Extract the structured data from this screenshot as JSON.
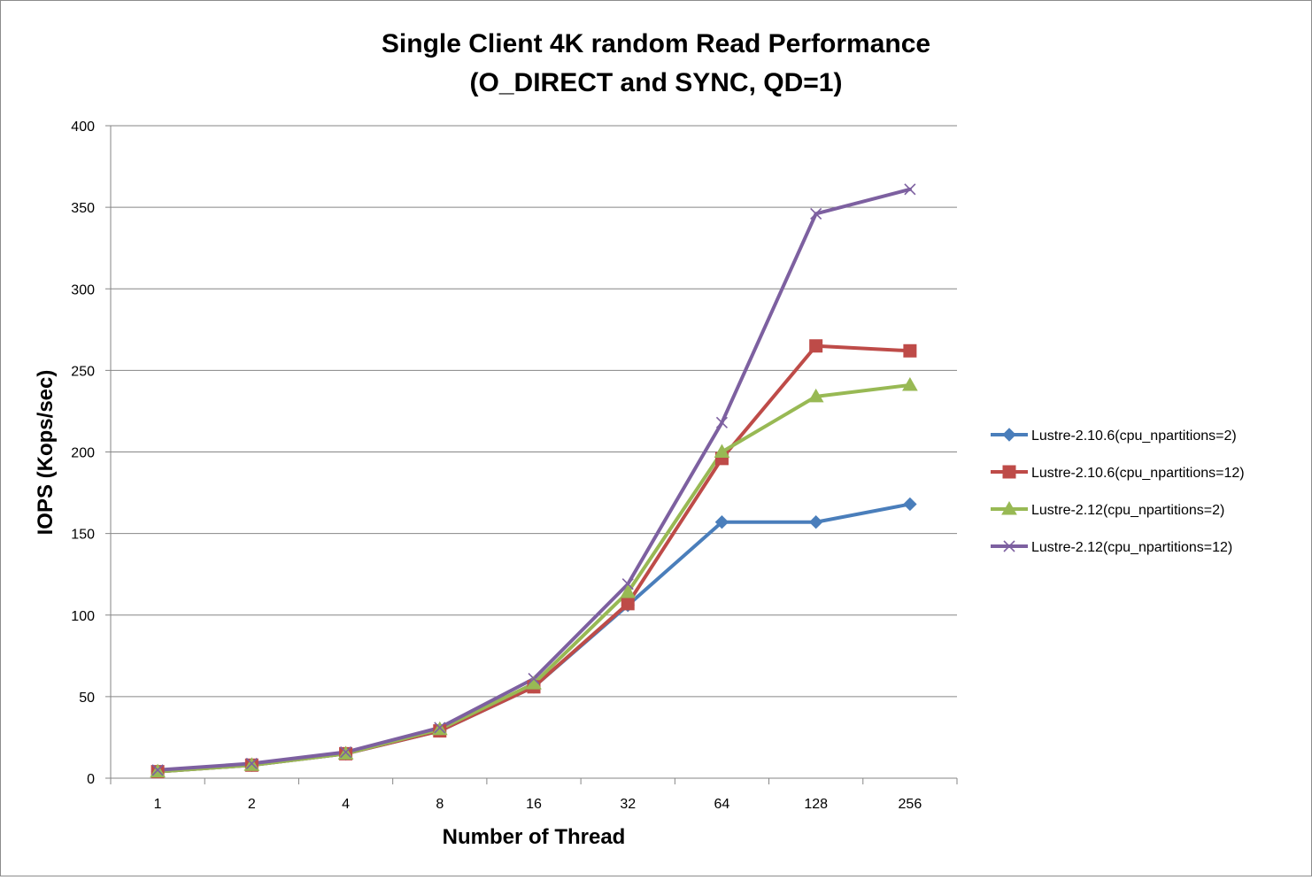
{
  "chart_data": {
    "type": "line",
    "title": "Single Client 4K random Read Performance",
    "subtitle": "(O_DIRECT and SYNC, QD=1)",
    "xlabel": "Number of Thread",
    "ylabel": "IOPS (Kops/sec)",
    "categories": [
      "1",
      "2",
      "4",
      "8",
      "16",
      "32",
      "64",
      "128",
      "256"
    ],
    "ylim": [
      0,
      400
    ],
    "yticks": [
      0,
      50,
      100,
      150,
      200,
      250,
      300,
      350,
      400
    ],
    "grid": true,
    "legend_position": "right",
    "series": [
      {
        "name": "Lustre-2.10.6(cpu_npartitions=2)",
        "color": "#4a7ebb",
        "marker": "diamond",
        "values": [
          4,
          8,
          15,
          29,
          56,
          106,
          157,
          157,
          168
        ]
      },
      {
        "name": "Lustre-2.10.6(cpu_npartitions=12)",
        "color": "#be4b48",
        "marker": "square",
        "values": [
          4,
          8,
          15,
          29,
          56,
          107,
          196,
          265,
          262
        ]
      },
      {
        "name": "Lustre-2.12(cpu_npartitions=2)",
        "color": "#98b954",
        "marker": "triangle",
        "values": [
          4,
          8,
          15,
          30,
          58,
          114,
          200,
          234,
          241
        ]
      },
      {
        "name": "Lustre-2.12(cpu_npartitions=12)",
        "color": "#7d60a0",
        "marker": "x",
        "values": [
          5,
          9,
          16,
          31,
          61,
          119,
          218,
          346,
          361
        ]
      }
    ]
  }
}
